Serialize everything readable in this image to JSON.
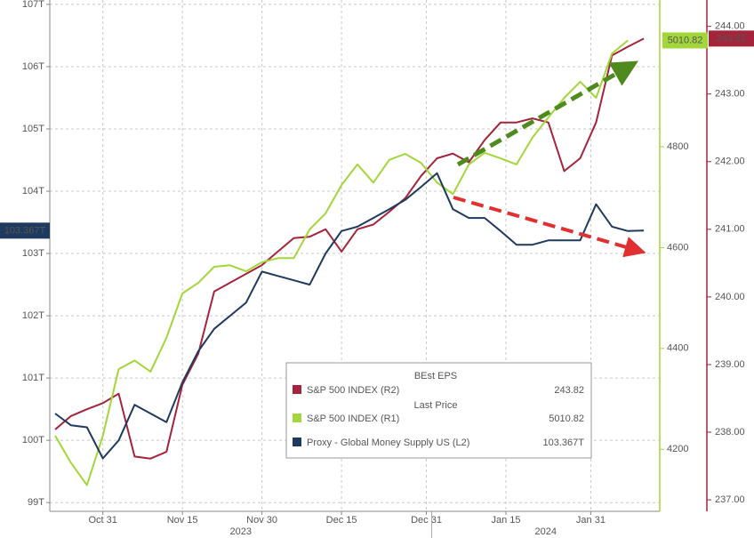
{
  "chart_data": {
    "type": "line",
    "x": [
      "2023-10-22",
      "2023-10-25",
      "2023-10-28",
      "2023-10-31",
      "2023-11-03",
      "2023-11-06",
      "2023-11-09",
      "2023-11-12",
      "2023-11-15",
      "2023-11-18",
      "2023-11-21",
      "2023-11-24",
      "2023-11-27",
      "2023-11-30",
      "2023-12-03",
      "2023-12-06",
      "2023-12-09",
      "2023-12-12",
      "2023-12-15",
      "2023-12-18",
      "2023-12-21",
      "2023-12-24",
      "2023-12-27",
      "2023-12-30",
      "2024-01-02",
      "2024-01-05",
      "2024-01-08",
      "2024-01-11",
      "2024-01-14",
      "2024-01-17",
      "2024-01-20",
      "2024-01-23",
      "2024-01-26",
      "2024-01-29",
      "2024-02-01",
      "2024-02-04",
      "2024-02-07",
      "2024-02-10"
    ],
    "xlim": [
      "2023-10-21",
      "2024-02-13"
    ],
    "xticks": [
      {
        "value": "2023-10-31",
        "label": "Oct 31"
      },
      {
        "value": "2023-11-15",
        "label": "Nov 15"
      },
      {
        "value": "2023-11-30",
        "label": "Nov 30"
      },
      {
        "value": "2023-12-15",
        "label": "Dec 15"
      },
      {
        "value": "2023-12-31",
        "label": "Dec 31"
      },
      {
        "value": "2024-01-15",
        "label": "Jan 15"
      },
      {
        "value": "2024-01-31",
        "label": "Jan 31"
      }
    ],
    "years": [
      "2023",
      "2024"
    ],
    "ylim": [
      98.86,
      107.07
    ],
    "yticks": [
      {
        "value": 99,
        "label": "99T"
      },
      {
        "value": 100,
        "label": "100T"
      },
      {
        "value": 101,
        "label": "101T"
      },
      {
        "value": 102,
        "label": "102T"
      },
      {
        "value": 103,
        "label": "103T"
      },
      {
        "value": 104,
        "label": "104T"
      },
      {
        "value": 105,
        "label": "105T"
      },
      {
        "value": 106,
        "label": "106T"
      },
      {
        "value": 107,
        "label": "107T"
      }
    ],
    "y2lim": [
      4077,
      5091
    ],
    "y2ticks": [
      4200,
      4400,
      4600,
      4800
    ],
    "y3lim": [
      236.83,
      244.39
    ],
    "y3ticks": [
      {
        "value": 237,
        "label": "237.00"
      },
      {
        "value": 238,
        "label": "238.00"
      },
      {
        "value": 239,
        "label": "239.00"
      },
      {
        "value": 240,
        "label": "240.00"
      },
      {
        "value": 241,
        "label": "241.00"
      },
      {
        "value": 242,
        "label": "242.00"
      },
      {
        "value": 243,
        "label": "243.00"
      },
      {
        "value": 244,
        "label": "244.00"
      }
    ],
    "grid": true,
    "series": [
      {
        "name": "S&P 500 INDEX (R2)",
        "field": "BEst EPS",
        "legend_value": "243.82",
        "axis": "y3",
        "color": "#a3243b",
        "values": [
          238.04,
          238.24,
          238.34,
          238.43,
          238.57,
          237.64,
          237.61,
          237.71,
          238.7,
          239.16,
          240.08,
          240.21,
          240.34,
          240.47,
          240.67,
          240.87,
          240.89,
          241.0,
          240.67,
          241.0,
          241.07,
          241.26,
          241.46,
          241.79,
          242.05,
          242.12,
          241.99,
          242.32,
          242.58,
          242.58,
          242.64,
          242.58,
          241.86,
          242.05,
          242.58,
          243.57,
          243.7,
          243.82
        ]
      },
      {
        "name": "S&P 500 INDEX (R1)",
        "field": "Last Price",
        "legend_value": "5010.82",
        "axis": "y2",
        "color": "#a3d63a",
        "values": [
          4227,
          4173,
          4129,
          4227,
          4359,
          4376,
          4354,
          4421,
          4509,
          4530,
          4562,
          4565,
          4553,
          4571,
          4579,
          4579,
          4636,
          4668,
          4724,
          4765,
          4729,
          4774,
          4786,
          4768,
          4729,
          4706,
          4765,
          4788,
          4777,
          4765,
          4818,
          4858,
          4897,
          4929,
          4897,
          4985,
          5010.82,
          null
        ]
      },
      {
        "name": "Proxy - Global Money Supply US (L2)",
        "legend_value": "103.367T",
        "axis": "y",
        "color": "#1e3a5f",
        "values": [
          100.43,
          100.24,
          100.21,
          99.71,
          100.0,
          100.57,
          100.43,
          100.29,
          100.93,
          101.43,
          101.79,
          102.0,
          102.21,
          102.71,
          102.64,
          102.57,
          102.5,
          103.0,
          103.36,
          103.43,
          103.57,
          103.71,
          103.86,
          104.07,
          104.29,
          103.71,
          103.57,
          103.57,
          103.36,
          103.14,
          103.14,
          103.21,
          103.21,
          103.21,
          103.79,
          103.43,
          103.36,
          103.367
        ]
      }
    ]
  }
}
